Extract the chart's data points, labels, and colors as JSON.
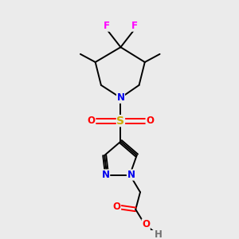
{
  "background_color": "#ebebeb",
  "atom_colors": {
    "C": "#000000",
    "N": "#0000ee",
    "O": "#ff0000",
    "S": "#ccaa00",
    "F": "#ff00ff",
    "H": "#707070"
  },
  "figsize": [
    3.0,
    3.0
  ],
  "dpi": 100
}
